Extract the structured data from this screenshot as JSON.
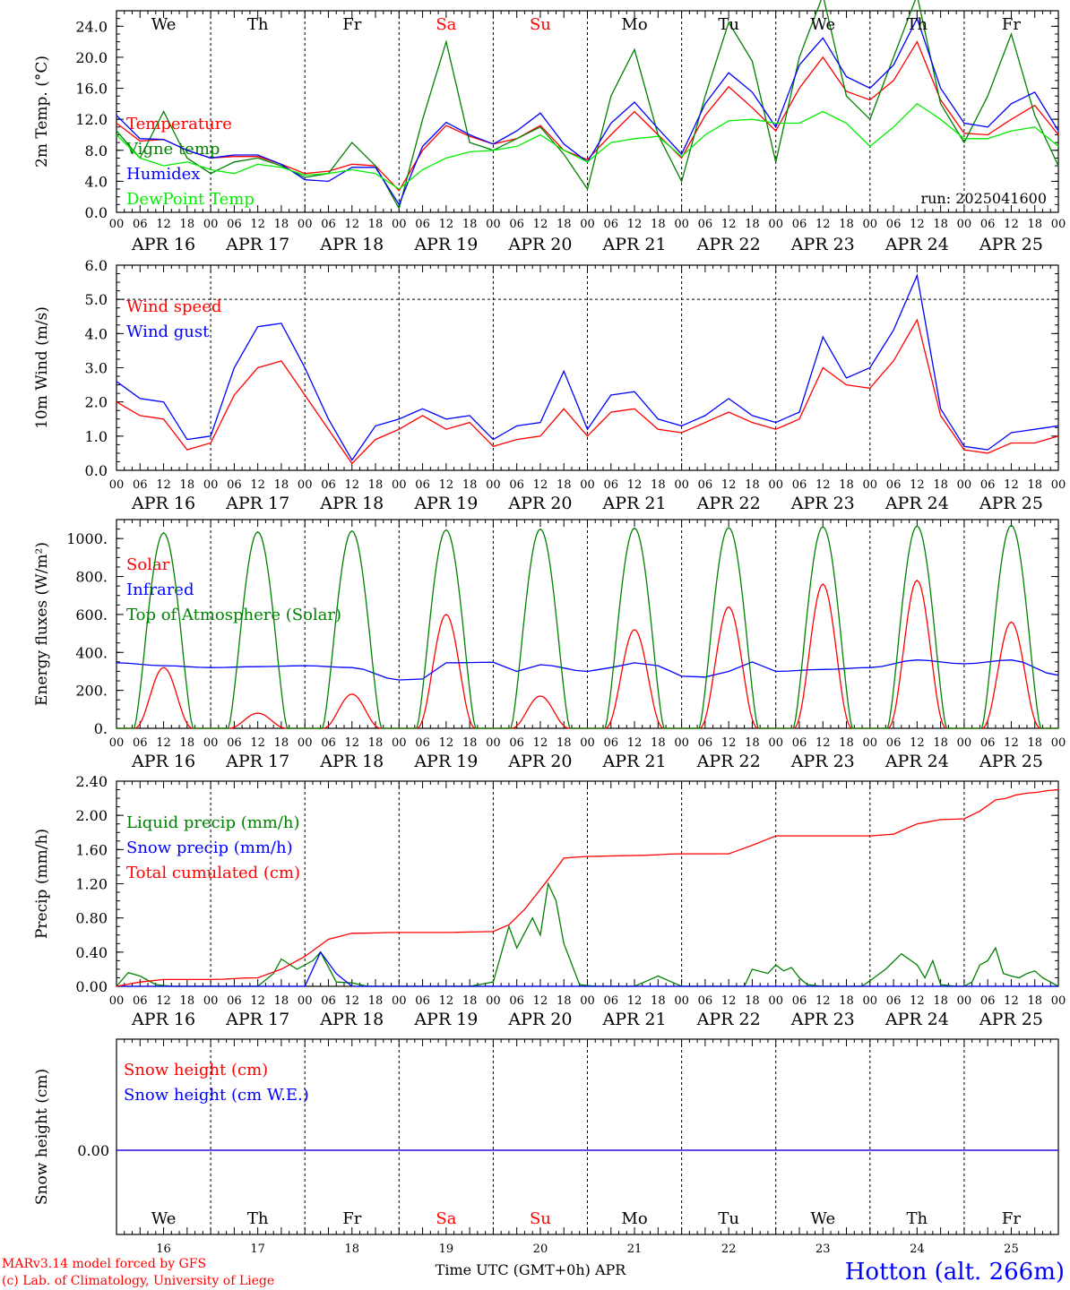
{
  "station": "Hotton (alt. 266m)",
  "run_label": "run: 2025041600",
  "footer_lines": [
    "MARv3.14 model forced by GFS",
    "(c) Lab. of Climatology, University of Liege"
  ],
  "x_axis_title": "Time UTC (GMT+0h) APR",
  "colors": {
    "red": "#ff0000",
    "blue": "#0000ff",
    "green": "#008000",
    "lightgreen": "#00ee00",
    "weekend": "#ff0000"
  },
  "day_names": [
    "We",
    "Th",
    "Fr",
    "Sa",
    "Su",
    "Mo",
    "Tu",
    "We",
    "Th",
    "Fr"
  ],
  "weekend_days": [
    "Sa",
    "Su"
  ],
  "hour_ticks": [
    "00",
    "06",
    "12",
    "18"
  ],
  "day_dates": [
    "APR 16",
    "APR 17",
    "APR 18",
    "APR 19",
    "APR 20",
    "APR 21",
    "APR 22",
    "APR 23",
    "APR 24",
    "APR 25"
  ],
  "day_numbers": [
    "16",
    "17",
    "18",
    "19",
    "20",
    "21",
    "22",
    "23",
    "24",
    "25"
  ],
  "chart_data": [
    {
      "type": "line",
      "ylabel": "2m Temp. (°C)",
      "ylim": [
        0,
        26
      ],
      "yticks": [
        "0.0",
        "4.0",
        "8.0",
        "12.0",
        "16.0",
        "20.0",
        "24.0"
      ],
      "ytick_values": [
        0,
        4,
        8,
        12,
        16,
        20,
        24
      ],
      "x_unit": "hours since APR 16 00 UTC",
      "series": [
        {
          "name": "Temperature",
          "color": "#ff0000",
          "x": [
            0,
            6,
            12,
            18,
            24,
            30,
            36,
            42,
            48,
            54,
            60,
            66,
            72,
            78,
            84,
            90,
            96,
            102,
            108,
            114,
            120,
            126,
            132,
            138,
            144,
            150,
            156,
            162,
            168,
            174,
            180,
            186,
            192,
            198,
            204,
            210,
            216,
            222,
            228,
            234,
            240
          ],
          "y": [
            11.5,
            9.2,
            9.4,
            8.0,
            7.0,
            7.2,
            7.2,
            6.2,
            5.0,
            5.3,
            6.2,
            6.0,
            2.8,
            8.0,
            11.2,
            9.8,
            8.8,
            9.5,
            11.2,
            8.0,
            6.8,
            10.0,
            13.0,
            10.0,
            7.0,
            12.5,
            16.2,
            13.5,
            10.5,
            16.0,
            20.0,
            15.6,
            14.5,
            17.0,
            22.0,
            14.5,
            10.2,
            10.0,
            12.0,
            13.8,
            10.0
          ]
        },
        {
          "name": "Vigne temp",
          "color": "#008000",
          "x": [
            0,
            6,
            12,
            18,
            24,
            30,
            36,
            42,
            48,
            54,
            60,
            66,
            72,
            78,
            84,
            90,
            96,
            102,
            108,
            114,
            120,
            126,
            132,
            138,
            144,
            150,
            156,
            162,
            168,
            174,
            180,
            186,
            192,
            198,
            204,
            210,
            216,
            222,
            228,
            234,
            240
          ],
          "y": [
            10.5,
            7.0,
            13.0,
            7.0,
            5.0,
            6.5,
            7.0,
            6.0,
            4.5,
            5.0,
            9.0,
            6.0,
            0.5,
            12.0,
            22.0,
            9.0,
            8.0,
            9.5,
            11.0,
            7.5,
            3.0,
            15.0,
            21.0,
            10.0,
            4.0,
            15.0,
            24.5,
            19.5,
            6.5,
            20.0,
            28.0,
            15.0,
            12.0,
            20.0,
            28.0,
            14.0,
            9.0,
            15.0,
            23.0,
            12.5,
            6.0
          ]
        },
        {
          "name": "Humidex",
          "color": "#0000ff",
          "x": [
            0,
            6,
            12,
            18,
            24,
            30,
            36,
            42,
            48,
            54,
            60,
            66,
            72,
            78,
            84,
            90,
            96,
            102,
            108,
            114,
            120,
            126,
            132,
            138,
            144,
            150,
            156,
            162,
            168,
            174,
            180,
            186,
            192,
            198,
            204,
            210,
            216,
            222,
            228,
            234,
            240
          ],
          "y": [
            12.5,
            9.5,
            9.4,
            8.0,
            7.0,
            7.4,
            7.4,
            6.2,
            4.2,
            4.0,
            5.8,
            5.8,
            1.0,
            8.5,
            11.6,
            10.0,
            8.8,
            10.5,
            12.8,
            8.8,
            6.5,
            11.5,
            14.2,
            10.8,
            7.5,
            14.0,
            18.0,
            15.5,
            11.0,
            19.0,
            22.5,
            17.5,
            16.0,
            19.0,
            25.0,
            16.0,
            11.5,
            11.0,
            14.0,
            15.5,
            10.5
          ]
        },
        {
          "name": "DewPoint Temp",
          "color": "#00ee00",
          "x": [
            0,
            6,
            12,
            18,
            24,
            30,
            36,
            42,
            48,
            54,
            60,
            66,
            72,
            78,
            84,
            90,
            96,
            102,
            108,
            114,
            120,
            126,
            132,
            138,
            144,
            150,
            156,
            162,
            168,
            174,
            180,
            186,
            192,
            198,
            204,
            210,
            216,
            222,
            228,
            234,
            240
          ],
          "y": [
            10.0,
            7.0,
            6.0,
            6.5,
            5.5,
            5.0,
            6.2,
            5.8,
            4.8,
            5.0,
            5.5,
            5.0,
            3.0,
            5.5,
            7.0,
            7.8,
            8.0,
            8.5,
            10.0,
            8.0,
            6.5,
            9.0,
            9.5,
            9.8,
            7.2,
            10.0,
            11.8,
            12.0,
            11.5,
            11.5,
            13.0,
            11.5,
            8.5,
            11.0,
            14.0,
            12.0,
            9.5,
            9.5,
            10.5,
            11.0,
            8.5
          ]
        }
      ]
    },
    {
      "type": "line",
      "ylabel": "10m Wind (m/s)",
      "ylim": [
        0,
        6
      ],
      "yticks": [
        "0.0",
        "1.0",
        "2.0",
        "3.0",
        "4.0",
        "5.0",
        "6.0"
      ],
      "ytick_values": [
        0,
        1,
        2,
        3,
        4,
        5,
        6
      ],
      "reference_line": 5.0,
      "series": [
        {
          "name": "Wind speed",
          "color": "#ff0000",
          "x": [
            0,
            6,
            12,
            18,
            24,
            30,
            36,
            42,
            48,
            54,
            60,
            66,
            72,
            78,
            84,
            90,
            96,
            102,
            108,
            114,
            120,
            126,
            132,
            138,
            144,
            150,
            156,
            162,
            168,
            174,
            180,
            186,
            192,
            198,
            204,
            210,
            216,
            222,
            228,
            234,
            240
          ],
          "y": [
            2.0,
            1.6,
            1.5,
            0.6,
            0.8,
            2.2,
            3.0,
            3.2,
            2.2,
            1.2,
            0.2,
            0.9,
            1.2,
            1.6,
            1.2,
            1.4,
            0.7,
            0.9,
            1.0,
            1.8,
            1.0,
            1.7,
            1.8,
            1.2,
            1.1,
            1.4,
            1.7,
            1.4,
            1.2,
            1.5,
            3.0,
            2.5,
            2.4,
            3.2,
            4.4,
            1.6,
            0.6,
            0.5,
            0.8,
            0.8,
            1.0
          ]
        },
        {
          "name": "Wind gust",
          "color": "#0000ff",
          "x": [
            0,
            6,
            12,
            18,
            24,
            30,
            36,
            42,
            48,
            54,
            60,
            66,
            72,
            78,
            84,
            90,
            96,
            102,
            108,
            114,
            120,
            126,
            132,
            138,
            144,
            150,
            156,
            162,
            168,
            174,
            180,
            186,
            192,
            198,
            204,
            210,
            216,
            222,
            228,
            234,
            240
          ],
          "y": [
            2.6,
            2.1,
            2.0,
            0.9,
            1.0,
            3.0,
            4.2,
            4.3,
            3.0,
            1.5,
            0.3,
            1.3,
            1.5,
            1.8,
            1.5,
            1.6,
            0.9,
            1.3,
            1.4,
            2.9,
            1.2,
            2.2,
            2.3,
            1.5,
            1.3,
            1.6,
            2.1,
            1.6,
            1.4,
            1.7,
            3.9,
            2.7,
            3.0,
            4.1,
            5.7,
            1.8,
            0.7,
            0.6,
            1.1,
            1.2,
            1.3
          ]
        }
      ]
    },
    {
      "type": "line",
      "ylabel": "Energy fluxes (W/m²)",
      "ylim": [
        0,
        1100
      ],
      "yticks": [
        "0.",
        "200.",
        "400.",
        "600.",
        "800.",
        "1000."
      ],
      "ytick_values": [
        0,
        200,
        400,
        600,
        800,
        1000
      ],
      "series": [
        {
          "name": "Solar",
          "color": "#ff0000",
          "day_peaks": [
            320,
            80,
            180,
            600,
            170,
            520,
            640,
            760,
            780,
            560
          ]
        },
        {
          "name": "Infrared",
          "color": "#0000ff",
          "x": [
            0,
            12,
            24,
            36,
            48,
            60,
            72,
            78,
            84,
            96,
            102,
            108,
            120,
            126,
            132,
            138,
            144,
            150,
            156,
            162,
            168,
            180,
            192,
            204,
            216,
            228,
            240
          ],
          "y": [
            345,
            330,
            320,
            325,
            330,
            320,
            255,
            260,
            345,
            348,
            300,
            335,
            300,
            320,
            345,
            330,
            275,
            270,
            300,
            350,
            300,
            310,
            320,
            360,
            340,
            360,
            280
          ]
        },
        {
          "name": "Top of Atmosphere (Solar)",
          "color": "#008000",
          "day_peaks": [
            1030,
            1035,
            1040,
            1045,
            1050,
            1055,
            1058,
            1062,
            1066,
            1070
          ]
        }
      ]
    },
    {
      "type": "line",
      "ylabel": "Precip (mm/h)",
      "ylim": [
        0,
        2.4
      ],
      "yticks": [
        "0.00",
        "0.40",
        "0.80",
        "1.20",
        "1.60",
        "2.00",
        "2.40"
      ],
      "ytick_values": [
        0,
        0.4,
        0.8,
        1.2,
        1.6,
        2.0,
        2.4
      ],
      "series": [
        {
          "name": "Liquid precip (mm/h)",
          "color": "#008000",
          "x": [
            0,
            3,
            6,
            10,
            14,
            24,
            36,
            40,
            42,
            46,
            50,
            52,
            56,
            60,
            64,
            90,
            96,
            100,
            102,
            106,
            108,
            110,
            112,
            114,
            118,
            122,
            126,
            132,
            138,
            144,
            150,
            160,
            162,
            166,
            168,
            170,
            172,
            174,
            176,
            180,
            190,
            196,
            200,
            204,
            206,
            208,
            210,
            214,
            216,
            218,
            220,
            222,
            224,
            226,
            228,
            230,
            232,
            234,
            236,
            240
          ],
          "y": [
            0,
            0.16,
            0.12,
            0.02,
            0,
            0,
            0,
            0.15,
            0.32,
            0.2,
            0.3,
            0.4,
            0.05,
            0.04,
            0,
            0,
            0.05,
            0.7,
            0.45,
            0.8,
            0.6,
            1.2,
            1.0,
            0.5,
            0.02,
            0,
            0,
            0,
            0.12,
            0,
            0,
            0,
            0.2,
            0.15,
            0.25,
            0.18,
            0.22,
            0.1,
            0.02,
            0,
            0,
            0.2,
            0.38,
            0.25,
            0.1,
            0.3,
            0.02,
            0,
            0,
            0.05,
            0.25,
            0.3,
            0.45,
            0.15,
            0.12,
            0.1,
            0.15,
            0.18,
            0.1,
            0
          ]
        },
        {
          "name": "Snow precip (mm/h)",
          "color": "#0000ff",
          "x": [
            0,
            40,
            48,
            52,
            56,
            60,
            240
          ],
          "y": [
            0,
            0,
            0,
            0.4,
            0.15,
            0,
            0
          ]
        },
        {
          "name": "Total cumulated (cm)",
          "color": "#ff0000",
          "x": [
            0,
            6,
            12,
            24,
            36,
            42,
            48,
            54,
            60,
            72,
            84,
            96,
            100,
            104,
            110,
            114,
            120,
            132,
            144,
            156,
            162,
            168,
            180,
            192,
            198,
            204,
            210,
            216,
            220,
            224,
            232,
            240
          ],
          "y": [
            0,
            0.05,
            0.08,
            0.08,
            0.1,
            0.2,
            0.35,
            0.55,
            0.62,
            0.63,
            0.63,
            0.64,
            0.72,
            0.9,
            1.25,
            1.5,
            1.52,
            1.53,
            1.55,
            1.55,
            1.65,
            1.76,
            1.76,
            1.76,
            1.78,
            1.9,
            1.95,
            1.96,
            2.05,
            2.18,
            2.26,
            2.3
          ]
        }
      ]
    },
    {
      "type": "line",
      "ylabel": "Snow height (cm)",
      "yticks": [
        "0.00"
      ],
      "ytick_values": [
        0
      ],
      "series": [
        {
          "name": "Snow height (cm)",
          "color": "#ff0000",
          "x": [
            0,
            240
          ],
          "y": [
            0,
            0
          ]
        },
        {
          "name": "Snow height (cm W.E.)",
          "color": "#0000ff",
          "x": [
            0,
            240
          ],
          "y": [
            0,
            0
          ]
        }
      ]
    }
  ]
}
